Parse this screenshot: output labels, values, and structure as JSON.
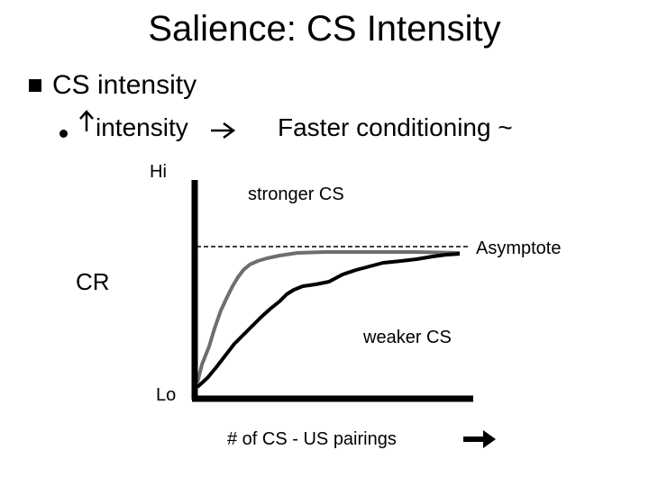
{
  "title": "Salience: CS Intensity",
  "bullet1": "CS intensity",
  "bullet2": {
    "text": "intensity",
    "result": "Faster conditioning ~",
    "up_arrow_icon": "up-arrow-icon",
    "right_arrow_icon": "right-arrow-icon"
  },
  "axes": {
    "y_label": "CR",
    "y_high": "Hi",
    "y_low": "Lo",
    "x_label": "# of CS - US pairings",
    "x_arrow_icon": "right-arrow-icon"
  },
  "curves": {
    "strong_label": "stronger CS",
    "weak_label": "weaker CS",
    "asymptote_label": "Asymptote"
  },
  "colors": {
    "strong_curve": "#6e6e6e",
    "weak_curve": "#000000",
    "axis": "#000000"
  }
}
